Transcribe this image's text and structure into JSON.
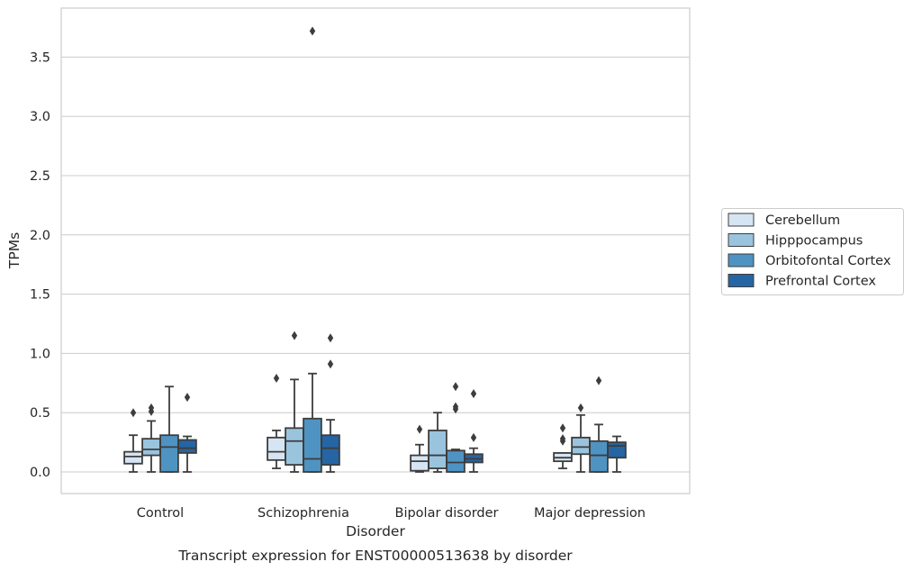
{
  "chart_data": {
    "type": "box",
    "caption": "Transcript expression for ENST00000513638 by disorder",
    "xlabel": "Disorder",
    "ylabel": "TPMs",
    "ylim": [
      -0.18,
      3.93
    ],
    "yticks": [
      "0.0",
      "0.5",
      "1.0",
      "1.5",
      "2.0",
      "2.5",
      "3.0",
      "3.5"
    ],
    "grid": true,
    "legend_position": "right",
    "categories": [
      "Control",
      "Schizophrenia",
      "Bipolar disorder",
      "Major depression"
    ],
    "series": [
      {
        "name": "Cerebellum",
        "color": "#d6e5f3",
        "boxes": [
          {
            "whislo": 0.0,
            "q1": 0.07,
            "med": 0.13,
            "q3": 0.17,
            "whishi": 0.31,
            "fliers": [
              0.5
            ]
          },
          {
            "whislo": 0.03,
            "q1": 0.1,
            "med": 0.17,
            "q3": 0.29,
            "whishi": 0.35,
            "fliers": [
              0.79
            ]
          },
          {
            "whislo": 0.0,
            "q1": 0.01,
            "med": 0.09,
            "q3": 0.14,
            "whishi": 0.23,
            "fliers": [
              0.36
            ]
          },
          {
            "whislo": 0.03,
            "q1": 0.09,
            "med": 0.12,
            "q3": 0.16,
            "whishi": 0.16,
            "fliers": [
              0.26,
              0.28,
              0.37
            ]
          }
        ]
      },
      {
        "name": "Hipppocampus",
        "color": "#9ac4de",
        "boxes": [
          {
            "whislo": 0.0,
            "q1": 0.14,
            "med": 0.19,
            "q3": 0.28,
            "whishi": 0.43,
            "fliers": [
              0.51,
              0.54
            ]
          },
          {
            "whislo": 0.0,
            "q1": 0.06,
            "med": 0.26,
            "q3": 0.37,
            "whishi": 0.78,
            "fliers": [
              1.15
            ]
          },
          {
            "whislo": 0.0,
            "q1": 0.03,
            "med": 0.14,
            "q3": 0.35,
            "whishi": 0.5,
            "fliers": []
          },
          {
            "whislo": 0.0,
            "q1": 0.15,
            "med": 0.21,
            "q3": 0.29,
            "whishi": 0.48,
            "fliers": [
              0.54
            ]
          }
        ]
      },
      {
        "name": "Orbitofontal Cortex",
        "color": "#4f93c2",
        "boxes": [
          {
            "whislo": 0.0,
            "q1": 0.0,
            "med": 0.21,
            "q3": 0.31,
            "whishi": 0.72,
            "fliers": []
          },
          {
            "whislo": 0.0,
            "q1": 0.0,
            "med": 0.11,
            "q3": 0.45,
            "whishi": 0.83,
            "fliers": [
              3.72
            ]
          },
          {
            "whislo": 0.0,
            "q1": 0.0,
            "med": 0.08,
            "q3": 0.18,
            "whishi": 0.19,
            "fliers": [
              0.53,
              0.55,
              0.72
            ]
          },
          {
            "whislo": 0.0,
            "q1": 0.0,
            "med": 0.14,
            "q3": 0.26,
            "whishi": 0.4,
            "fliers": [
              0.77
            ]
          }
        ]
      },
      {
        "name": "Prefrontal Cortex",
        "color": "#2565a3",
        "boxes": [
          {
            "whislo": 0.0,
            "q1": 0.16,
            "med": 0.2,
            "q3": 0.27,
            "whishi": 0.3,
            "fliers": [
              0.63
            ]
          },
          {
            "whislo": 0.0,
            "q1": 0.06,
            "med": 0.2,
            "q3": 0.31,
            "whishi": 0.44,
            "fliers": [
              0.91,
              1.13
            ]
          },
          {
            "whislo": 0.0,
            "q1": 0.08,
            "med": 0.11,
            "q3": 0.15,
            "whishi": 0.2,
            "fliers": [
              0.29,
              0.66
            ]
          },
          {
            "whislo": 0.0,
            "q1": 0.12,
            "med": 0.22,
            "q3": 0.25,
            "whishi": 0.3,
            "fliers": []
          }
        ]
      }
    ]
  }
}
